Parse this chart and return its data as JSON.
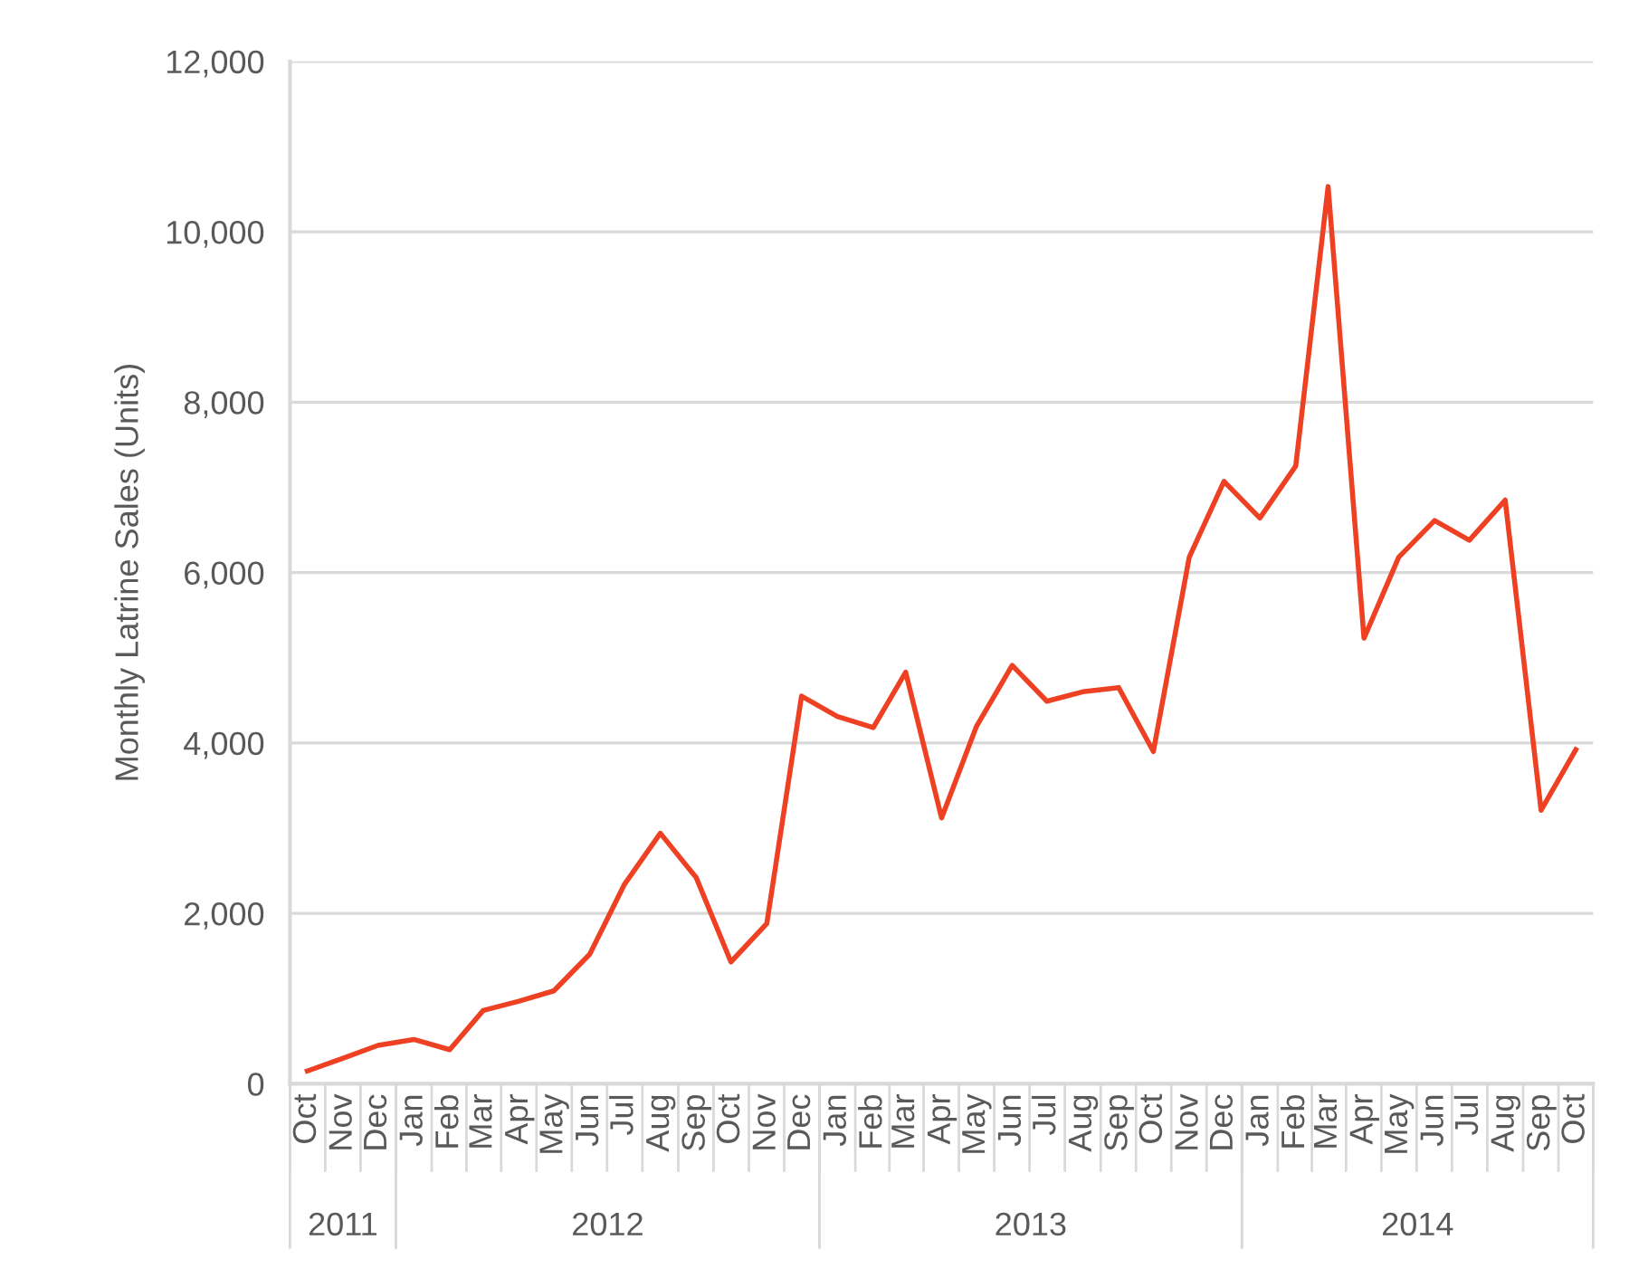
{
  "chart_data": {
    "type": "line",
    "ylabel": "Monthly Latrine Sales (Units)",
    "x": [
      "2011-10",
      "2011-11",
      "2011-12",
      "2012-01",
      "2012-02",
      "2012-03",
      "2012-04",
      "2012-05",
      "2012-06",
      "2012-07",
      "2012-08",
      "2012-09",
      "2012-10",
      "2012-11",
      "2012-12",
      "2013-01",
      "2013-02",
      "2013-03",
      "2013-04",
      "2013-05",
      "2013-06",
      "2013-07",
      "2013-08",
      "2013-09",
      "2013-10",
      "2013-11",
      "2013-12",
      "2014-01",
      "2014-02",
      "2014-03",
      "2014-04",
      "2014-05",
      "2014-06",
      "2014-07",
      "2014-08",
      "2014-09",
      "2014-10"
    ],
    "series": [
      {
        "color": "#ee4123",
        "values": [
          150,
          300,
          450,
          520,
          400,
          860,
          970,
          1090,
          1520,
          2340,
          2940,
          2420,
          1430,
          1880,
          4550,
          4310,
          4180,
          4830,
          3120,
          4190,
          4910,
          4490,
          4600,
          4650,
          3900,
          6180,
          7070,
          6640,
          7250,
          10530,
          5230,
          6180,
          6610,
          6380,
          6850,
          3210,
          3920
        ]
      }
    ],
    "xlim": [
      "2011-09-16",
      "2014-10-16"
    ],
    "xticks": [
      {
        "value": "2011-10",
        "label": "Oct"
      },
      {
        "value": "2011-11",
        "label": "Nov"
      },
      {
        "value": "2011-12",
        "label": "Dec"
      },
      {
        "value": "2012-01",
        "label": "Jan"
      },
      {
        "value": "2012-02",
        "label": "Feb"
      },
      {
        "value": "2012-03",
        "label": "Mar"
      },
      {
        "value": "2012-04",
        "label": "Apr"
      },
      {
        "value": "2012-05",
        "label": "May"
      },
      {
        "value": "2012-06",
        "label": "Jun"
      },
      {
        "value": "2012-07",
        "label": "Jul"
      },
      {
        "value": "2012-08",
        "label": "Aug"
      },
      {
        "value": "2012-09",
        "label": "Sep"
      },
      {
        "value": "2012-10",
        "label": "Oct"
      },
      {
        "value": "2012-11",
        "label": "Nov"
      },
      {
        "value": "2012-12",
        "label": "Dec"
      },
      {
        "value": "2013-01",
        "label": "Jan"
      },
      {
        "value": "2013-02",
        "label": "Feb"
      },
      {
        "value": "2013-03",
        "label": "Mar"
      },
      {
        "value": "2013-04",
        "label": "Apr"
      },
      {
        "value": "2013-05",
        "label": "May"
      },
      {
        "value": "2013-06",
        "label": "Jun"
      },
      {
        "value": "2013-07",
        "label": "Jul"
      },
      {
        "value": "2013-08",
        "label": "Aug"
      },
      {
        "value": "2013-09",
        "label": "Sep"
      },
      {
        "value": "2013-10",
        "label": "Oct"
      },
      {
        "value": "2013-11",
        "label": "Nov"
      },
      {
        "value": "2013-12",
        "label": "Dec"
      },
      {
        "value": "2014-01",
        "label": "Jan"
      },
      {
        "value": "2014-02",
        "label": "Feb"
      },
      {
        "value": "2014-03",
        "label": "Mar"
      },
      {
        "value": "2014-04",
        "label": "Apr"
      },
      {
        "value": "2014-05",
        "label": "May"
      },
      {
        "value": "2014-06",
        "label": "Jun"
      },
      {
        "value": "2014-07",
        "label": "Jul"
      },
      {
        "value": "2014-08",
        "label": "Aug"
      },
      {
        "value": "2014-09",
        "label": "Sep"
      },
      {
        "value": "2014-10",
        "label": "Oct"
      }
    ],
    "ylim": [
      0,
      12000
    ],
    "yticks": [
      {
        "value": 0,
        "label": "0"
      },
      {
        "value": 2000,
        "label": "2,000"
      },
      {
        "value": 4000,
        "label": "4,000"
      },
      {
        "value": 6000,
        "label": "6,000"
      },
      {
        "value": 8000,
        "label": "8,000"
      },
      {
        "value": 10000,
        "label": "10,000"
      },
      {
        "value": 12000,
        "label": "12,000"
      }
    ],
    "annotations": [
      "2011",
      "2012",
      "2013",
      "2014"
    ],
    "grid": "y",
    "marker": "none",
    "line_style": "solid"
  }
}
